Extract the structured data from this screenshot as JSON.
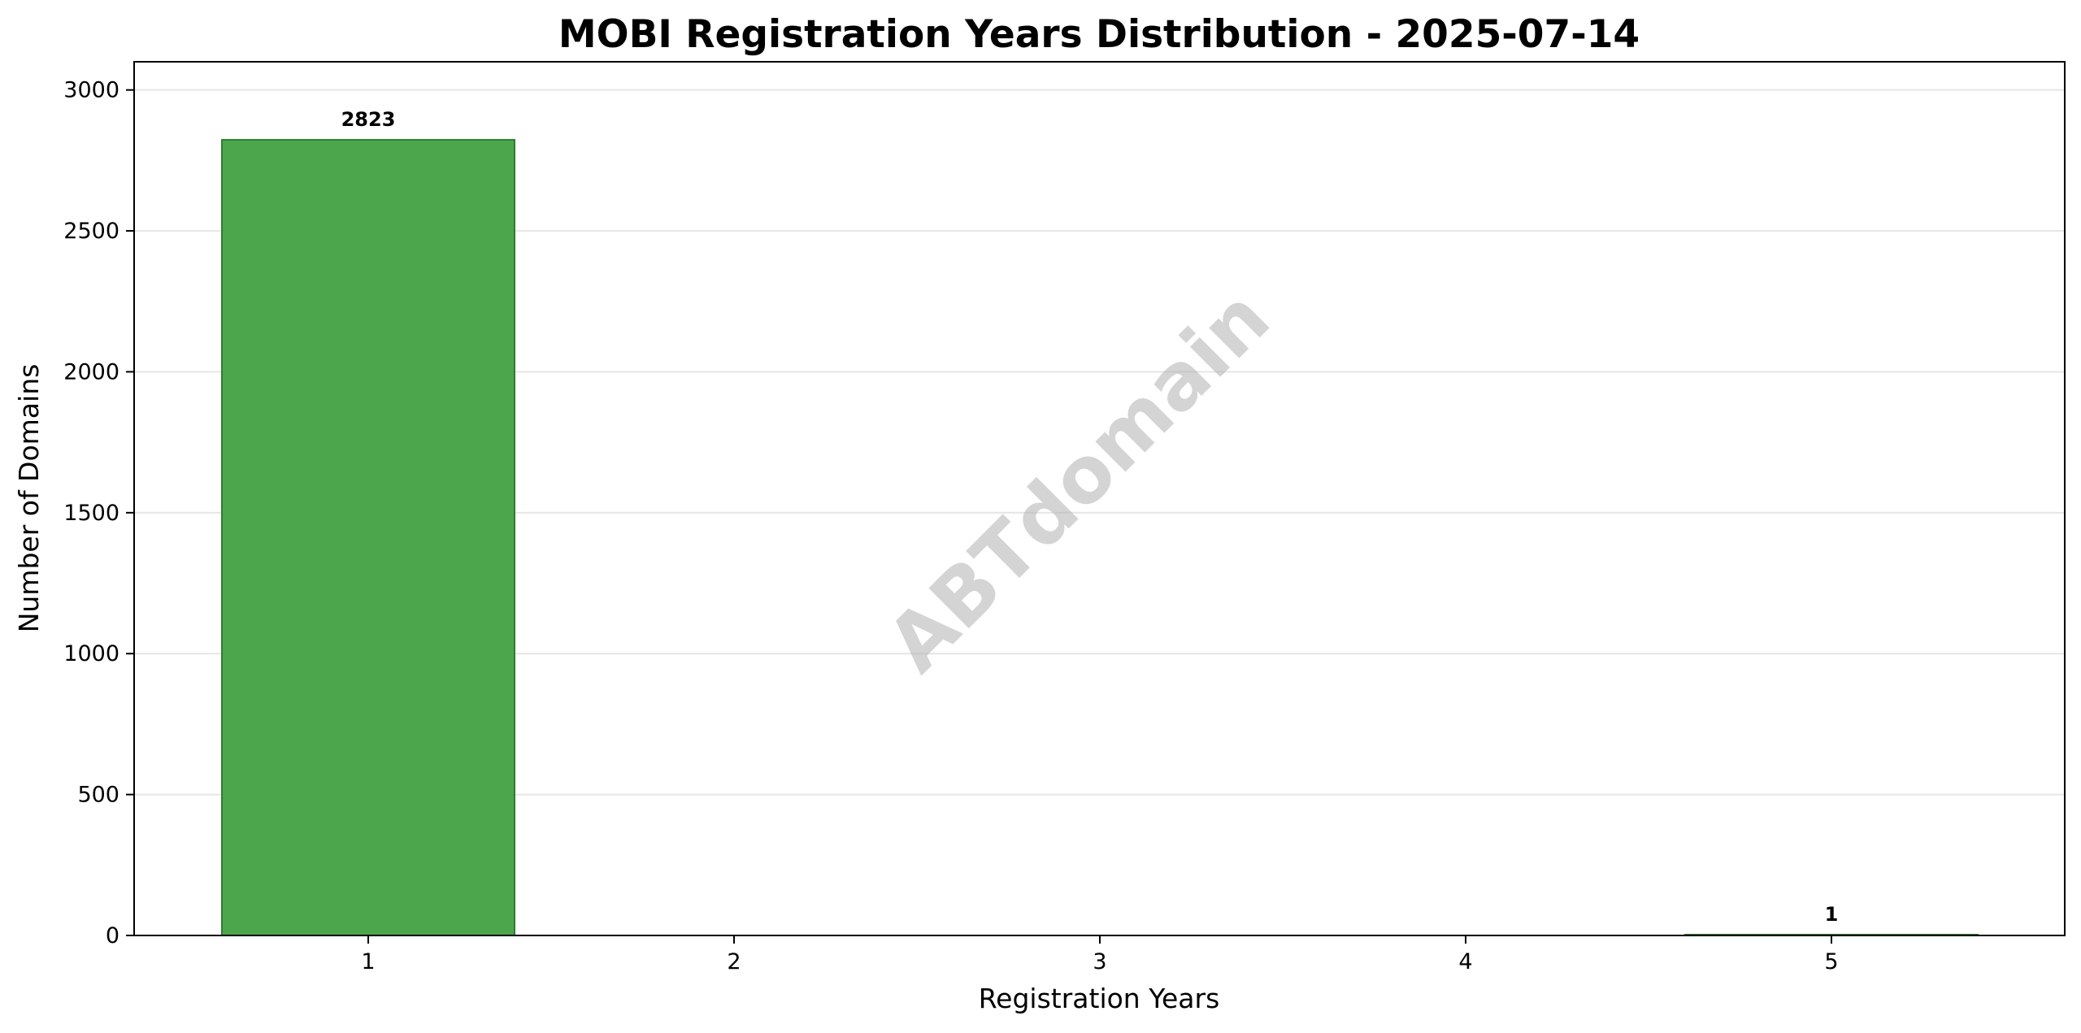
{
  "watermark": "ABTdomain",
  "colors": {
    "bar_fill": "#4ca64c",
    "bar_edge": "#2e7d32",
    "grid": "#e6e6e6",
    "axis": "#000000"
  },
  "chart_data": {
    "type": "bar",
    "title": "MOBI Registration Years Distribution - 2025-07-14",
    "xlabel": "Registration Years",
    "ylabel": "Number of Domains",
    "categories": [
      "1",
      "2",
      "3",
      "4",
      "5"
    ],
    "values": [
      2823,
      0,
      0,
      0,
      1
    ],
    "data_labels": [
      "2823",
      null,
      null,
      null,
      "1"
    ],
    "ylim": [
      0,
      3100
    ],
    "yticks": [
      0,
      500,
      1000,
      1500,
      2000,
      2500,
      3000
    ],
    "ytick_labels": [
      "0",
      "500",
      "1000",
      "1500",
      "2000",
      "2500",
      "3000"
    ],
    "grid": "horizontal",
    "legend": "none"
  }
}
